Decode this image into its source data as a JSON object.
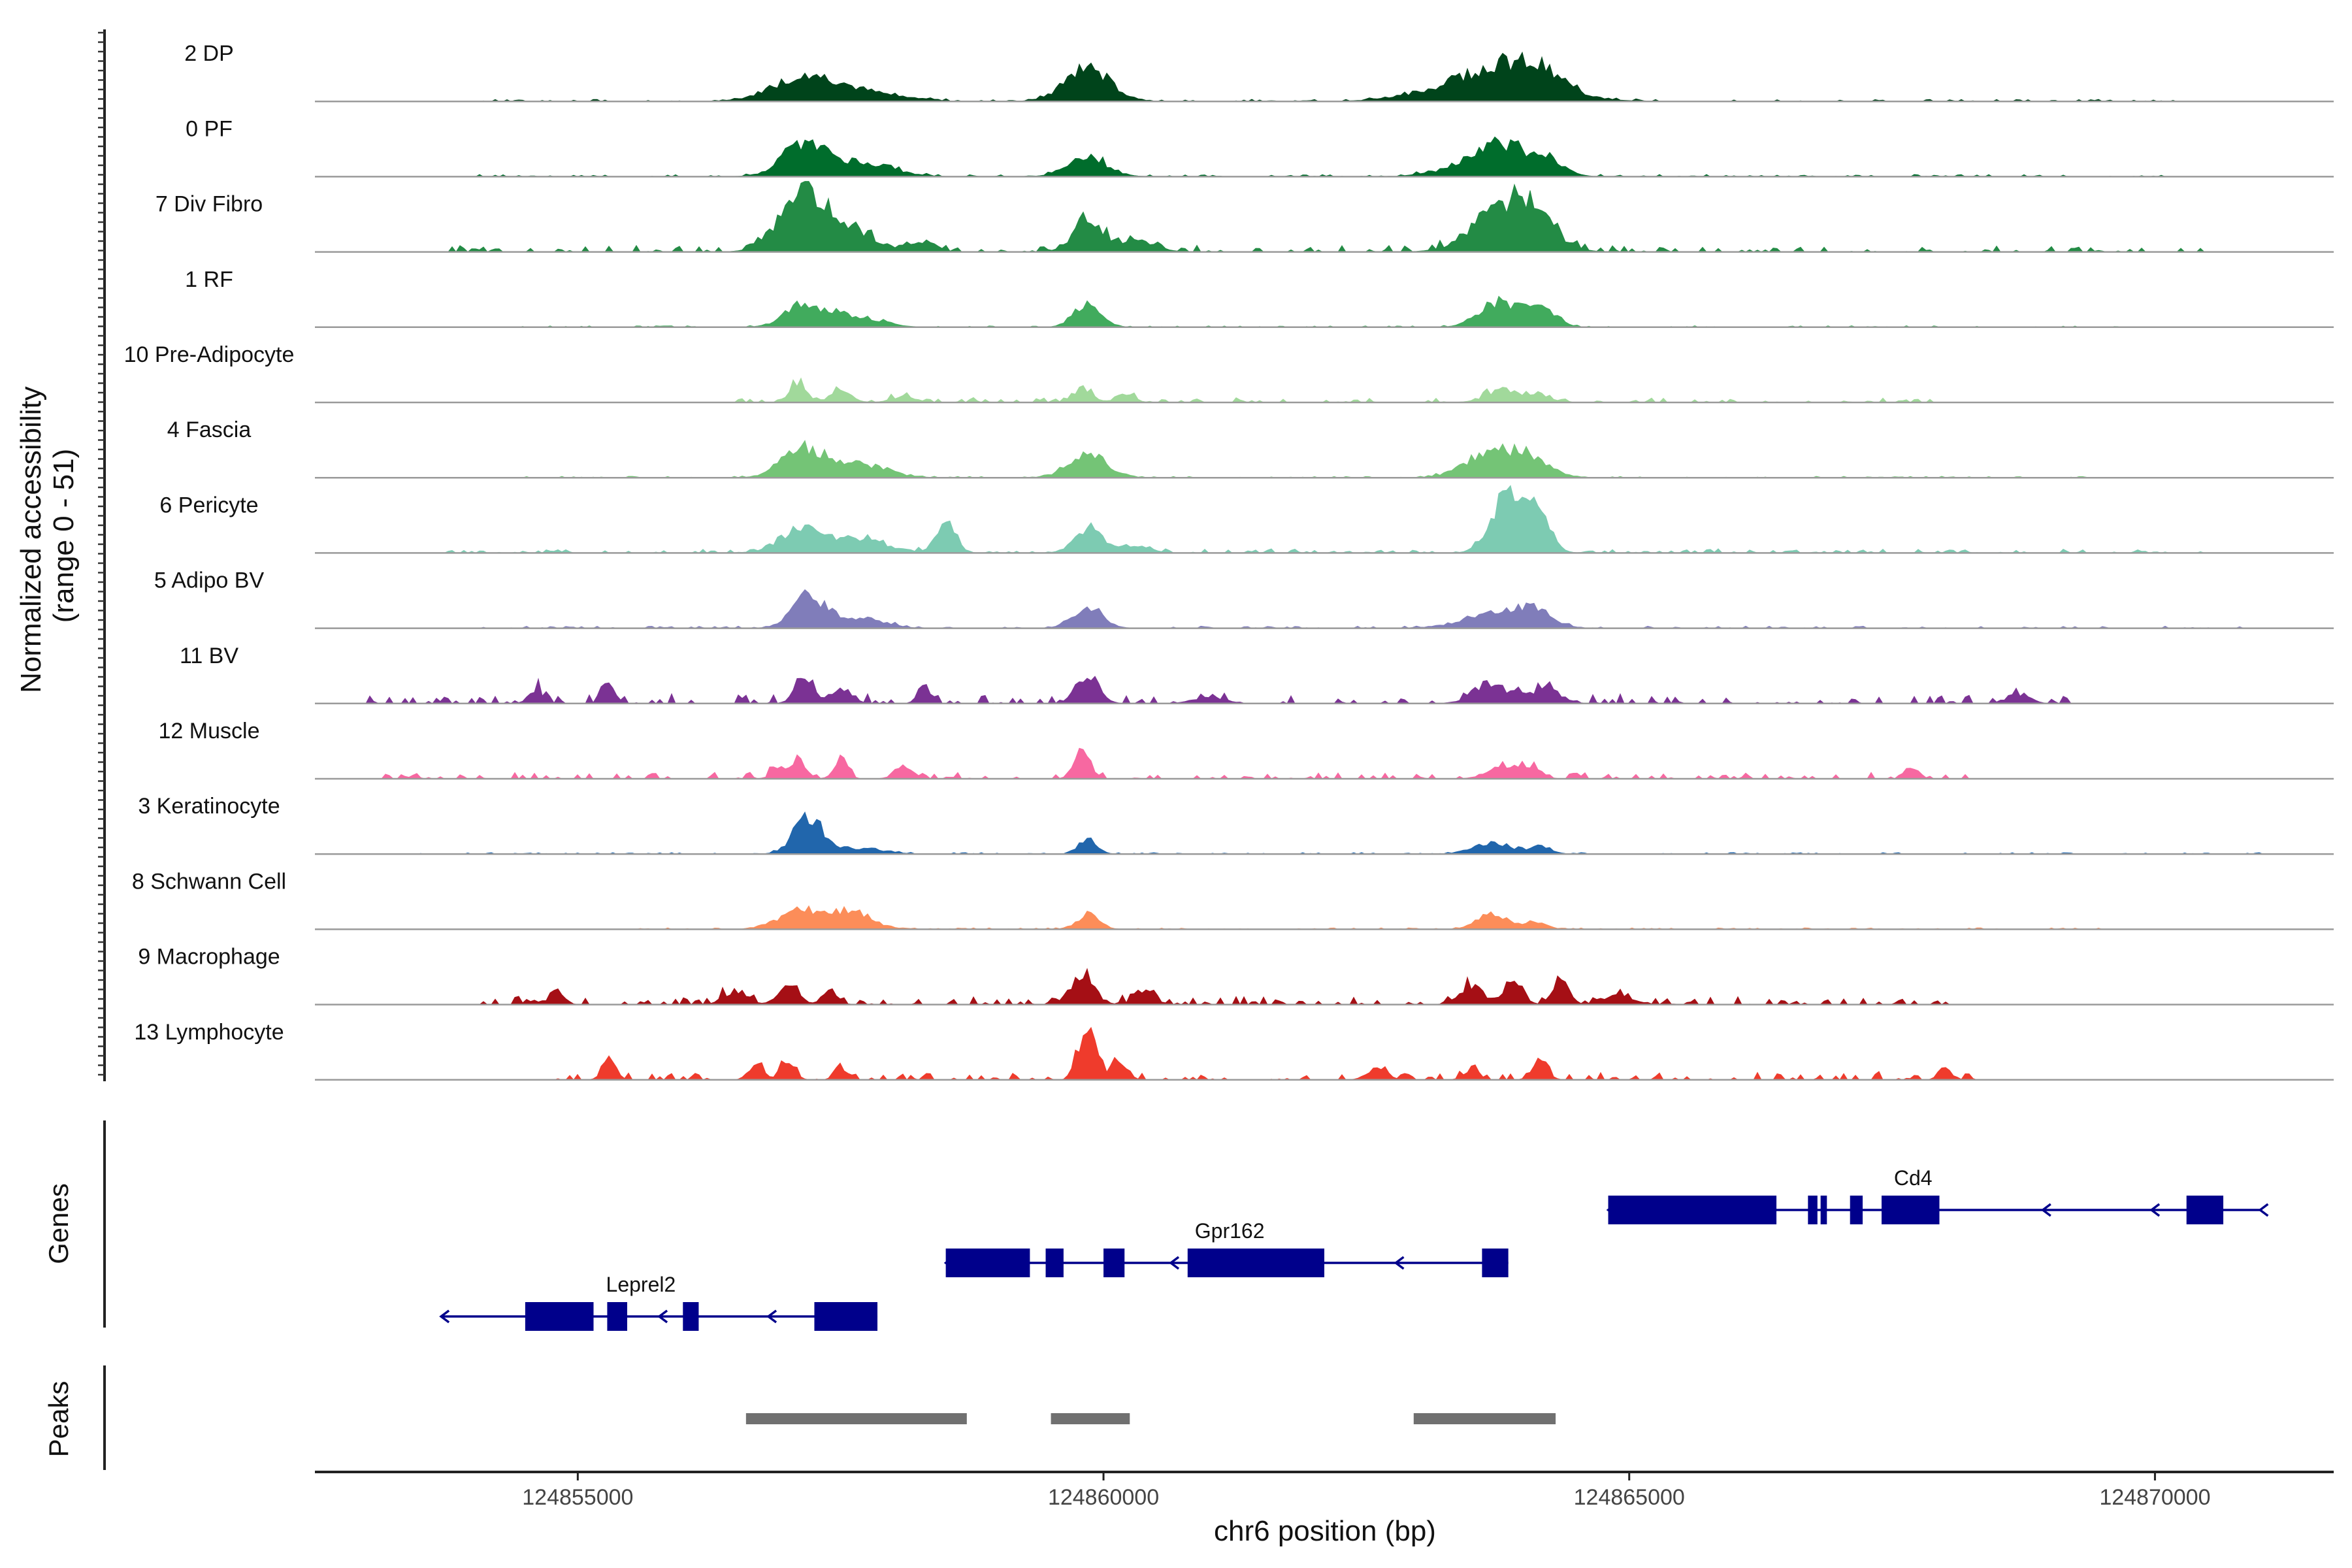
{
  "chart_data": {
    "type": "area",
    "chromosome": "chr6",
    "xlabel": "chr6 position (bp)",
    "ylabel": "Normalized accessibility\n(range 0 - 51)",
    "ylim": [
      0,
      51
    ],
    "xlim": [
      124852500,
      124871700
    ],
    "x_ticks": [
      124855000,
      124860000,
      124865000,
      124870000
    ],
    "tracks": [
      {
        "name": "2 DP",
        "color": "#00441b",
        "peaks": [
          [
            124857150,
            0.34,
            420
          ],
          [
            124857700,
            0.12,
            500
          ],
          [
            124859850,
            0.46,
            300
          ],
          [
            124863700,
            0.36,
            700
          ],
          [
            124863850,
            0.18,
            400
          ],
          [
            124864200,
            0.16,
            300
          ]
        ],
        "noise_from": 124854000,
        "noise_to": 124870200,
        "noise": 0.03
      },
      {
        "name": "0 PF",
        "color": "#006d2c",
        "peaks": [
          [
            124857150,
            0.42,
            300
          ],
          [
            124857700,
            0.2,
            400
          ],
          [
            124859850,
            0.28,
            260
          ],
          [
            124863800,
            0.36,
            300
          ],
          [
            124864200,
            0.24,
            240
          ],
          [
            124863500,
            0.16,
            400
          ]
        ],
        "noise_from": 124854000,
        "noise_to": 124870200,
        "noise": 0.03
      },
      {
        "name": "7 Div Fibro",
        "color": "#238b45",
        "peaks": [
          [
            124857150,
            0.78,
            320
          ],
          [
            124857600,
            0.22,
            400
          ],
          [
            124858300,
            0.14,
            150
          ],
          [
            124859850,
            0.42,
            200
          ],
          [
            124860300,
            0.16,
            250
          ],
          [
            124863800,
            0.6,
            400
          ],
          [
            124864100,
            0.3,
            300
          ]
        ],
        "noise_from": 124853700,
        "noise_to": 124870600,
        "noise": 0.08
      },
      {
        "name": "1 RF",
        "color": "#41ab5d",
        "peaks": [
          [
            124857150,
            0.28,
            260
          ],
          [
            124857600,
            0.16,
            350
          ],
          [
            124859850,
            0.34,
            180
          ],
          [
            124863750,
            0.36,
            250
          ],
          [
            124864150,
            0.28,
            200
          ]
        ],
        "noise_from": 124854300,
        "noise_to": 124870000,
        "noise": 0.02
      },
      {
        "name": "10 Pre-Adipocyte",
        "color": "#a1d99b",
        "peaks": [
          [
            124857100,
            0.3,
            110
          ],
          [
            124857500,
            0.16,
            140
          ],
          [
            124858100,
            0.08,
            160
          ],
          [
            124859800,
            0.2,
            130
          ],
          [
            124860200,
            0.12,
            120
          ],
          [
            124863800,
            0.18,
            220
          ],
          [
            124864150,
            0.1,
            150
          ]
        ],
        "noise_from": 124856500,
        "noise_to": 124868000,
        "noise": 0.06
      },
      {
        "name": "4 Fascia",
        "color": "#74c476",
        "peaks": [
          [
            124857150,
            0.42,
            280
          ],
          [
            124857700,
            0.18,
            350
          ],
          [
            124859850,
            0.36,
            250
          ],
          [
            124863600,
            0.26,
            300
          ],
          [
            124864000,
            0.32,
            300
          ]
        ],
        "noise_from": 124854500,
        "noise_to": 124869500,
        "noise": 0.02
      },
      {
        "name": "6 Pericyte",
        "color": "#7dcbb2",
        "peaks": [
          [
            124857150,
            0.36,
            300
          ],
          [
            124857700,
            0.18,
            350
          ],
          [
            124858500,
            0.44,
            130
          ],
          [
            124859850,
            0.36,
            180
          ],
          [
            124863850,
            0.8,
            220
          ],
          [
            124864100,
            0.6,
            180
          ],
          [
            124860300,
            0.1,
            200
          ]
        ],
        "noise_from": 124853700,
        "noise_to": 124870500,
        "noise": 0.05
      },
      {
        "name": "5 Adipo BV",
        "color": "#807dba",
        "peaks": [
          [
            124857200,
            0.44,
            230
          ],
          [
            124857700,
            0.14,
            300
          ],
          [
            124859850,
            0.28,
            200
          ],
          [
            124863700,
            0.2,
            400
          ],
          [
            124864100,
            0.22,
            240
          ]
        ],
        "noise_from": 124854000,
        "noise_to": 124871200,
        "noise": 0.03
      },
      {
        "name": "11 BV",
        "color": "#7b3294",
        "peaks": [
          [
            124857150,
            0.42,
            120
          ],
          [
            124857500,
            0.22,
            140
          ],
          [
            124858300,
            0.22,
            90
          ],
          [
            124859850,
            0.4,
            150
          ],
          [
            124861000,
            0.1,
            200
          ],
          [
            124863700,
            0.24,
            250
          ],
          [
            124864200,
            0.2,
            200
          ],
          [
            124855300,
            0.24,
            90
          ],
          [
            124853000,
            0.1,
            60
          ],
          [
            124854600,
            0.18,
            100
          ],
          [
            124868700,
            0.14,
            150
          ]
        ],
        "noise_from": 124853000,
        "noise_to": 124869200,
        "noise": 0.12
      },
      {
        "name": "12 Muscle",
        "color": "#f768a1",
        "peaks": [
          [
            124856900,
            0.18,
            80
          ],
          [
            124857100,
            0.28,
            100
          ],
          [
            124857500,
            0.28,
            90
          ],
          [
            124858100,
            0.18,
            120
          ],
          [
            124859800,
            0.36,
            110
          ],
          [
            124863800,
            0.2,
            200
          ],
          [
            124864100,
            0.12,
            120
          ],
          [
            124867700,
            0.18,
            80
          ]
        ],
        "noise_from": 124853000,
        "noise_to": 124868200,
        "noise": 0.08
      },
      {
        "name": "3 Keratinocyte",
        "color": "#2166ac",
        "peaks": [
          [
            124857200,
            0.5,
            200
          ],
          [
            124857700,
            0.08,
            300
          ],
          [
            124859850,
            0.22,
            120
          ],
          [
            124863700,
            0.16,
            250
          ],
          [
            124864150,
            0.1,
            150
          ]
        ],
        "noise_from": 124853500,
        "noise_to": 124871000,
        "noise": 0.02
      },
      {
        "name": "8 Schwann Cell",
        "color": "#fc8d59",
        "peaks": [
          [
            124857100,
            0.26,
            280
          ],
          [
            124857600,
            0.24,
            280
          ],
          [
            124859850,
            0.2,
            150
          ],
          [
            124863700,
            0.22,
            200
          ],
          [
            124864100,
            0.1,
            150
          ]
        ],
        "noise_from": 124855500,
        "noise_to": 124869500,
        "noise": 0.02
      },
      {
        "name": "9 Macrophage",
        "color": "#a50f15",
        "peaks": [
          [
            124854800,
            0.24,
            90
          ],
          [
            124856500,
            0.2,
            150
          ],
          [
            124857000,
            0.3,
            130
          ],
          [
            124857400,
            0.2,
            100
          ],
          [
            124859800,
            0.38,
            160
          ],
          [
            124860400,
            0.18,
            130
          ],
          [
            124863500,
            0.28,
            160
          ],
          [
            124863900,
            0.36,
            120
          ],
          [
            124864350,
            0.44,
            100
          ],
          [
            124864900,
            0.12,
            200
          ]
        ],
        "noise_from": 124854000,
        "noise_to": 124868300,
        "noise": 0.1
      },
      {
        "name": "13 Lymphocyte",
        "color": "#ef3b2c",
        "peaks": [
          [
            124855300,
            0.28,
            90
          ],
          [
            124856700,
            0.22,
            100
          ],
          [
            124857000,
            0.3,
            90
          ],
          [
            124857500,
            0.2,
            80
          ],
          [
            124859850,
            0.88,
            110
          ],
          [
            124860150,
            0.3,
            100
          ],
          [
            124862600,
            0.16,
            130
          ],
          [
            124863500,
            0.16,
            100
          ],
          [
            124864150,
            0.3,
            100
          ],
          [
            124868000,
            0.2,
            80
          ]
        ],
        "noise_from": 124854500,
        "noise_to": 124868300,
        "noise": 0.1
      }
    ],
    "genes": [
      {
        "name": "Cd4",
        "start": 124864800,
        "end": 124871000,
        "strand": "-",
        "row": 0,
        "exons": [
          [
            124864800,
            124866400
          ],
          [
            124866700,
            124866790
          ],
          [
            124866820,
            124866880
          ],
          [
            124867100,
            124867220
          ],
          [
            124867400,
            124867950
          ],
          [
            124870300,
            124870650
          ]
        ]
      },
      {
        "name": "Gpr162",
        "start": 124858500,
        "end": 124863850,
        "strand": "-",
        "row": 1,
        "exons": [
          [
            124858500,
            124859300
          ],
          [
            124859450,
            124859620
          ],
          [
            124860000,
            124860200
          ],
          [
            124860800,
            124862100
          ],
          [
            124863600,
            124863850
          ]
        ]
      },
      {
        "name": "Leprel2",
        "start": 124853700,
        "end": 124857850,
        "strand": "-",
        "row": 2,
        "exons": [
          [
            124854500,
            124855150
          ],
          [
            124855280,
            124855470
          ],
          [
            124856000,
            124856150
          ],
          [
            124857250,
            124857850
          ]
        ]
      }
    ],
    "peak_regions": [
      [
        124856600,
        124858700
      ],
      [
        124859500,
        124860250
      ],
      [
        124862950,
        124864300
      ]
    ],
    "panels": [
      "Genes",
      "Peaks"
    ]
  }
}
